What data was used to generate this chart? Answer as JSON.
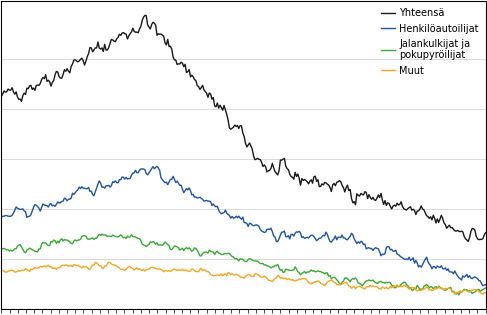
{
  "n_points": 362,
  "colors": {
    "yhteensa": "#1a1a1a",
    "henkiloauto": "#2055a4",
    "jalankulkija": "#3aaa35",
    "muut": "#f5a623"
  },
  "legend_labels": {
    "yhteensa": "Yhteensä",
    "henkiloauto": "Henkilöautoilijat",
    "jalankulkija": "Jalankulkijat ja\npokupyröilijat",
    "muut": "Muut"
  },
  "linewidth": 1.0,
  "background_color": "#ffffff",
  "grid_color": "#cccccc",
  "border_color": "#000000",
  "noise_scale": {
    "yhteensa": 30,
    "henkiloauto": 18,
    "jalankulkija": 14,
    "muut": 10
  },
  "seed": 42
}
